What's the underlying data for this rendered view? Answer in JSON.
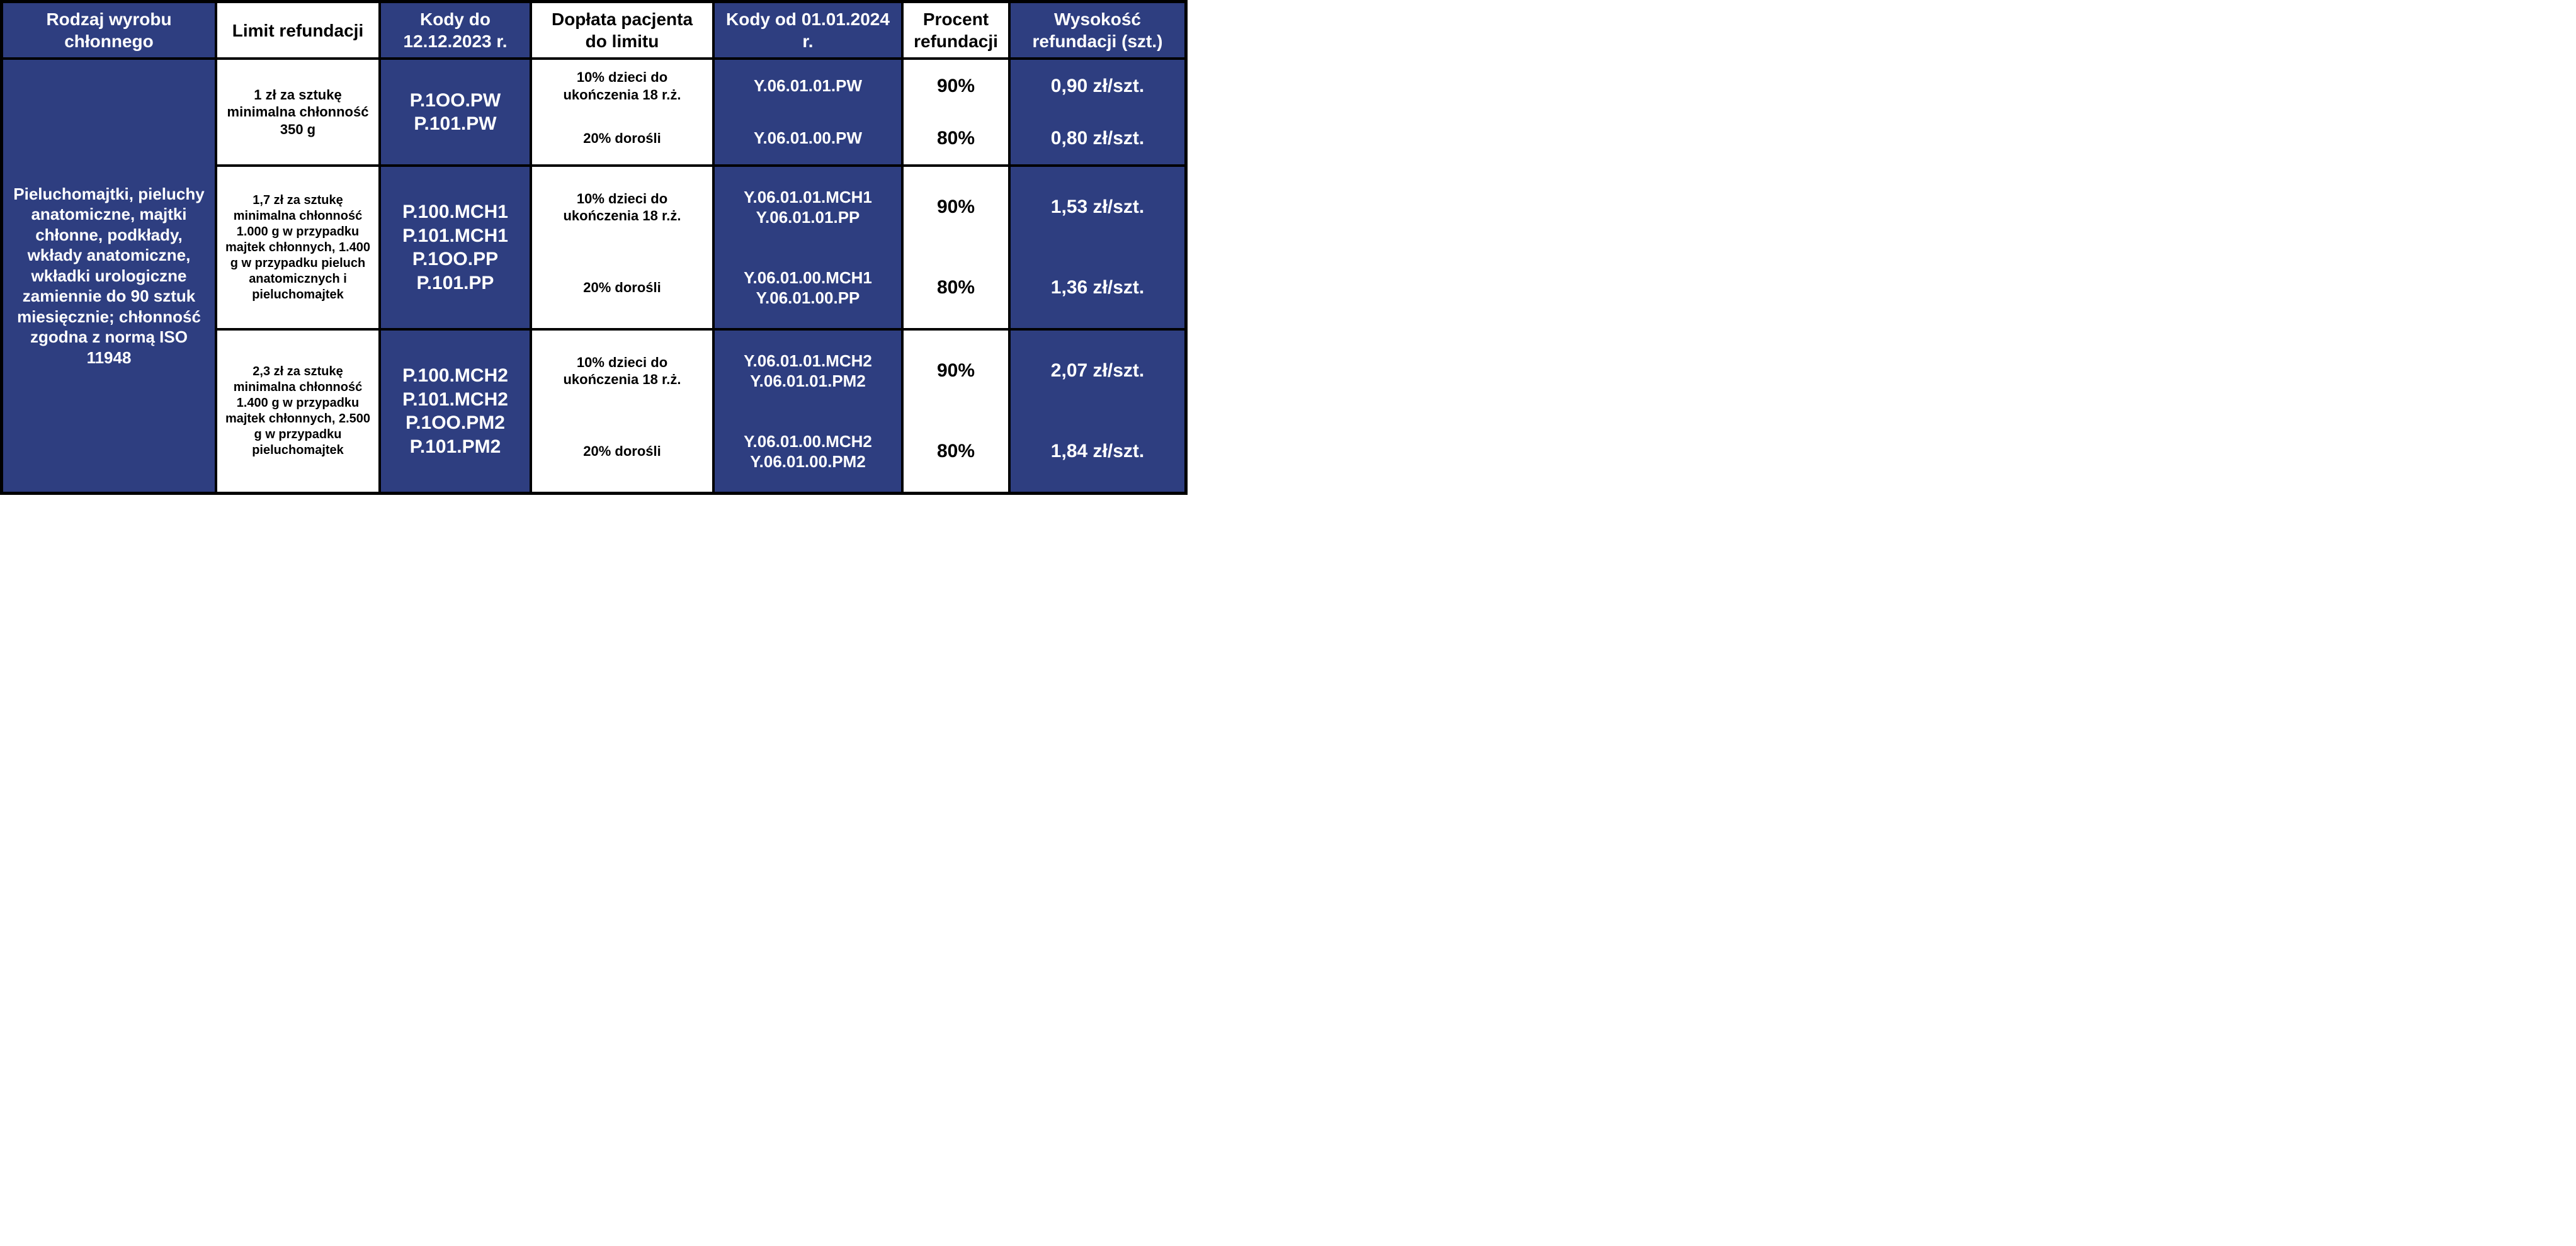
{
  "colors": {
    "header_bg": "#2e3e80",
    "header_fg": "#ffffff",
    "border": "#000000",
    "dash": "#3bb3d6",
    "white": "#ffffff",
    "black": "#000000"
  },
  "headers": {
    "c1": "Rodzaj wyrobu chłonnego",
    "c2": "Limit refundacji",
    "c3": "Kody do 12.12.2023 r.",
    "c4": "Dopłata pacjenta do limitu",
    "c5": "Kody od 01.01.2024 r.",
    "c6": "Procent refundacji",
    "c7": "Wysokość refundacji (szt.)"
  },
  "category": "Pieluchomajtki, pieluchy anatomiczne, majtki chłonne, podkłady, wkłady anatomiczne, wkładki urologiczne zamiennie do 90 sztuk miesięcznie; chłonność zgodna z normą ISO 11948",
  "groups": [
    {
      "limit": "1 zł za sztukę minimalna chłonność 350 g",
      "codes_old": "P.1OO.PW\nP.101.PW",
      "rows": [
        {
          "doplata": "10% dzieci do ukończenia 18 r.ż.",
          "codes_new": "Y.06.01.01.PW",
          "procent": "90%",
          "wysokosc": "0,90 zł/szt."
        },
        {
          "doplata": "20% dorośli",
          "codes_new": "Y.06.01.00.PW",
          "procent": "80%",
          "wysokosc": "0,80 zł/szt."
        }
      ]
    },
    {
      "limit": "1,7 zł za sztukę minimalna chłonność 1.000 g w przypadku majtek chłonnych, 1.400 g w przypadku pieluch anatomicznych i pieluchomajtek",
      "codes_old": "P.100.MCH1\nP.101.MCH1\nP.1OO.PP\nP.101.PP",
      "rows": [
        {
          "doplata": "10% dzieci do ukończenia 18 r.ż.",
          "codes_new": "Y.06.01.01.MCH1\nY.06.01.01.PP",
          "procent": "90%",
          "wysokosc": "1,53 zł/szt."
        },
        {
          "doplata": "20% dorośli",
          "codes_new": "Y.06.01.00.MCH1\nY.06.01.00.PP",
          "procent": "80%",
          "wysokosc": "1,36 zł/szt."
        }
      ]
    },
    {
      "limit": "2,3 zł za sztukę minimalna chłonność 1.400 g w przypadku majtek chłonnych, 2.500 g w przypadku pieluchomajtek",
      "codes_old": "P.100.MCH2\nP.101.MCH2\nP.1OO.PM2\nP.101.PM2",
      "rows": [
        {
          "doplata": "10% dzieci do ukończenia 18 r.ż.",
          "codes_new": "Y.06.01.01.MCH2\nY.06.01.01.PM2",
          "procent": "90%",
          "wysokosc": "2,07 zł/szt."
        },
        {
          "doplata": "20% dorośli",
          "codes_new": "Y.06.01.00.MCH2\nY.06.01.00.PM2",
          "procent": "80%",
          "wysokosc": "1,84 zł/szt."
        }
      ]
    }
  ]
}
